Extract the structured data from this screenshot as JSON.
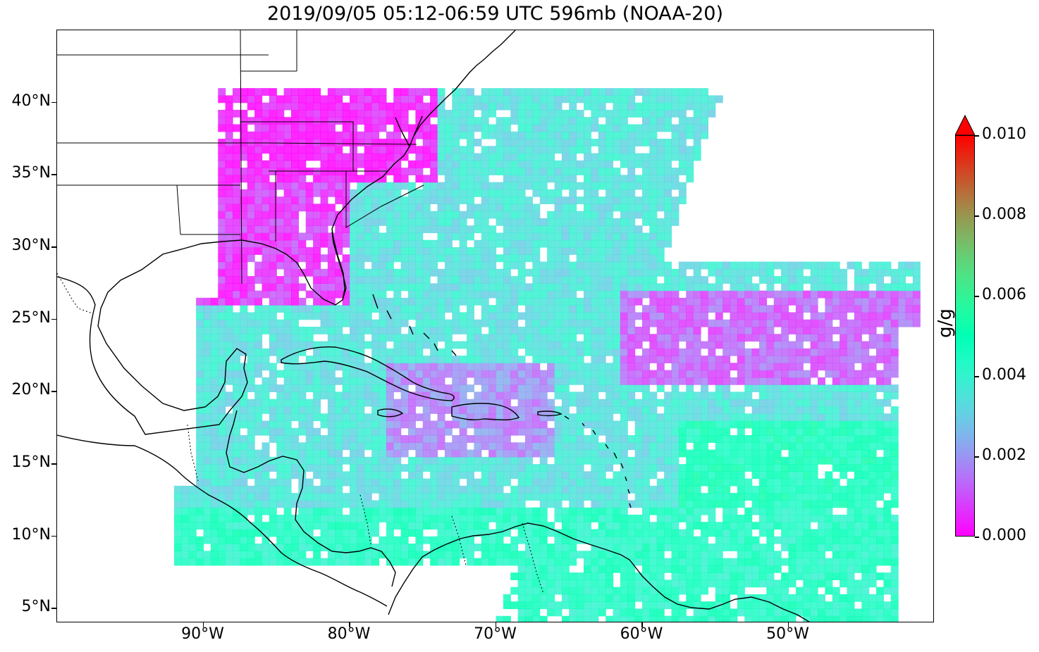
{
  "title": "2019/09/05 05:12-06:59 UTC 596mb (NOAA-20)",
  "map": {
    "projection": "PlateCarree",
    "lon_range": [
      -100,
      -40
    ],
    "lat_range": [
      4,
      45
    ],
    "y_ticks": [
      {
        "lat": 40,
        "label": "40°N"
      },
      {
        "lat": 35,
        "label": "35°N"
      },
      {
        "lat": 30,
        "label": "30°N"
      },
      {
        "lat": 25,
        "label": "25°N"
      },
      {
        "lat": 20,
        "label": "20°N"
      },
      {
        "lat": 15,
        "label": "15°N"
      },
      {
        "lat": 10,
        "label": "10°N"
      },
      {
        "lat": 5,
        "label": "5°N"
      }
    ],
    "x_ticks": [
      {
        "lon": -90,
        "label": "90°W"
      },
      {
        "lon": -80,
        "label": "80°W"
      },
      {
        "lon": -70,
        "label": "70°W"
      },
      {
        "lon": -60,
        "label": "60°W"
      },
      {
        "lon": -50,
        "label": "50°W"
      }
    ],
    "colors": {
      "coast": "#000000",
      "data_missing": "#ffffff"
    }
  },
  "colorbar": {
    "unit": "g/g",
    "min": 0.0,
    "max": 0.01,
    "extend": "max",
    "colormap": "rainbow",
    "ticks": [
      "0.000",
      "0.002",
      "0.004",
      "0.006",
      "0.008",
      "0.010"
    ],
    "extend_color": "#ff0000"
  }
}
